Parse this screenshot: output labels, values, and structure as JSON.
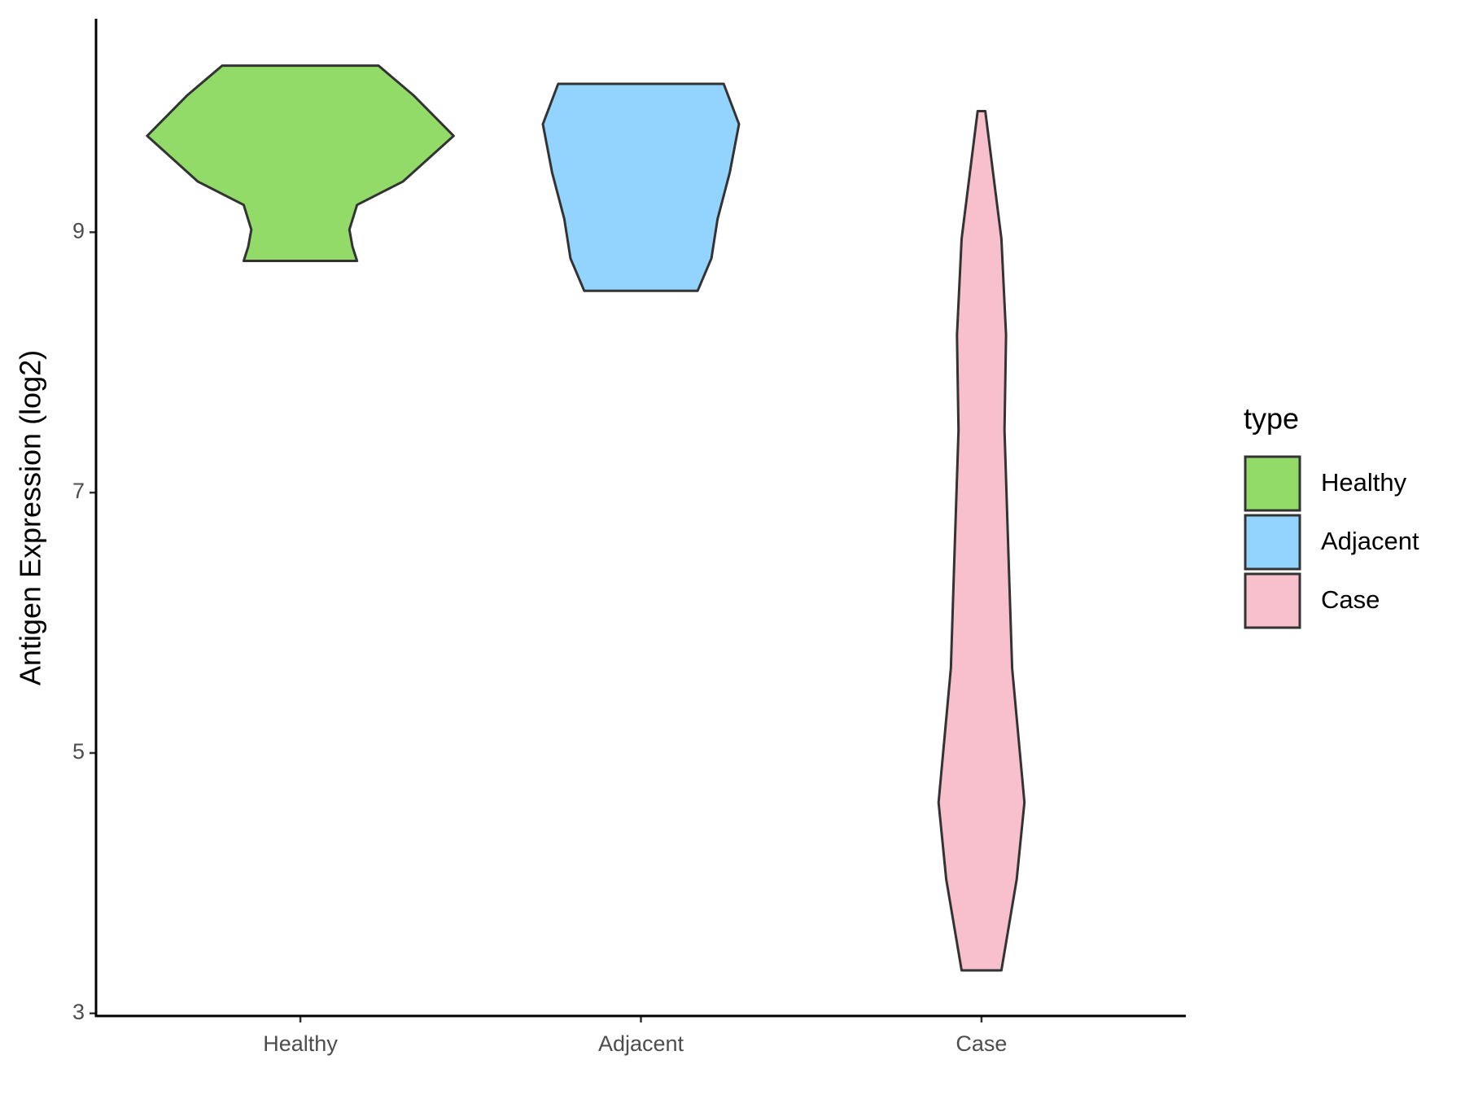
{
  "chart_data": {
    "type": "violin",
    "y_label": "Antigen Expression (log2)",
    "categories": [
      "Healthy",
      "Adjacent",
      "Case"
    ],
    "legend_title": "type",
    "legend": "right",
    "ylim": [
      2.98,
      10.64
    ],
    "yticks": [
      3,
      5,
      7,
      9
    ],
    "series": [
      {
        "name": "Healthy",
        "color": "#93db69",
        "y": [
          10.28,
          10.05,
          9.74,
          9.39,
          9.21,
          9.02,
          8.89,
          8.78
        ],
        "density": [
          0.51,
          0.74,
          1,
          0.67,
          0.37,
          0.32,
          0.34,
          0.37
        ]
      },
      {
        "name": "Adjacent",
        "color": "#93d4ff",
        "y": [
          10.14,
          9.83,
          9.46,
          9.1,
          8.8,
          8.55
        ],
        "density": [
          0.54,
          0.64,
          0.58,
          0.5,
          0.46,
          0.37
        ]
      },
      {
        "name": "Case",
        "color": "#f8c0cc",
        "y": [
          9.93,
          8.95,
          8.21,
          7.48,
          6.38,
          5.65,
          4.62,
          4.03,
          3.33
        ],
        "density": [
          0.025,
          0.13,
          0.16,
          0.15,
          0.18,
          0.2,
          0.28,
          0.23,
          0.13
        ]
      }
    ]
  }
}
